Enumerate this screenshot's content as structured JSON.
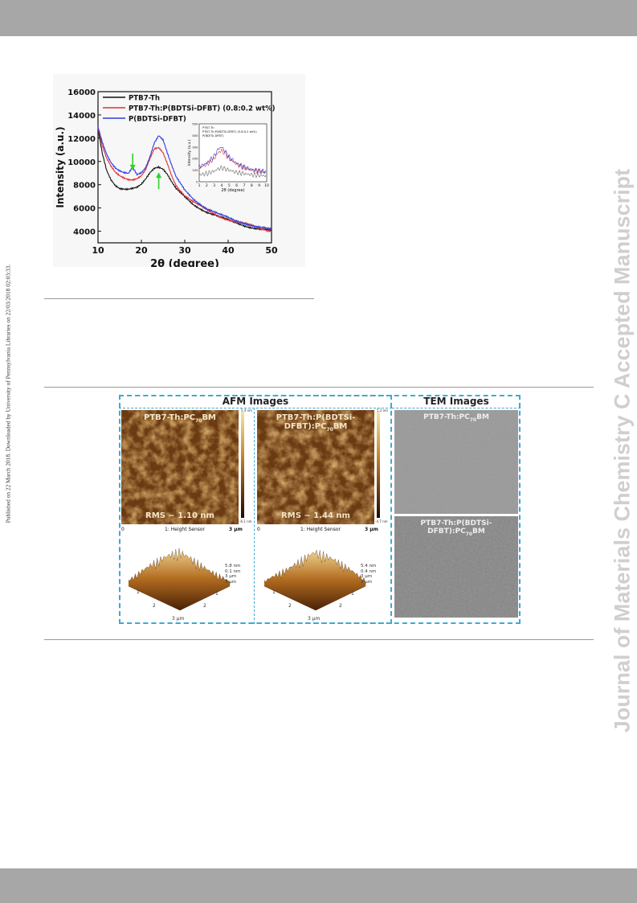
{
  "page": {
    "side_stamp": "Published on 22 March 2018. Downloaded by University of Pennsylvania Libraries on 22/03/2018 02:03:33.",
    "watermark": "Journal of Materials Chemistry C Accepted Manuscript"
  },
  "colors": {
    "bar_gray": "#a7a7a7",
    "series_black": "#111111",
    "series_red": "#e23030",
    "series_blue": "#2f3be0",
    "arrow_green": "#31d12b",
    "dash_blue": "#3fa9d6"
  },
  "chart_data": {
    "type": "line",
    "xlabel": "2θ (degree)",
    "ylabel": "Intensity (a.u.)",
    "xlim": [
      10,
      50
    ],
    "ylim": [
      3000,
      16000
    ],
    "xticks": [
      10,
      20,
      30,
      40,
      50
    ],
    "yticks": [
      4000,
      6000,
      8000,
      10000,
      12000,
      14000,
      16000
    ],
    "legend_position": "top-right",
    "series": [
      {
        "name": "PTB7-Th",
        "color": "#111111",
        "points": [
          [
            10,
            12800
          ],
          [
            11,
            10700
          ],
          [
            12,
            9300
          ],
          [
            13,
            8500
          ],
          [
            14,
            8000
          ],
          [
            15,
            7700
          ],
          [
            16,
            7600
          ],
          [
            17,
            7550
          ],
          [
            18,
            7600
          ],
          [
            19,
            7700
          ],
          [
            20,
            8000
          ],
          [
            21,
            8500
          ],
          [
            22,
            9100
          ],
          [
            23,
            9500
          ],
          [
            24,
            9600
          ],
          [
            25,
            9400
          ],
          [
            26,
            8900
          ],
          [
            27,
            8200
          ],
          [
            28,
            7600
          ],
          [
            30,
            6900
          ],
          [
            32,
            6300
          ],
          [
            35,
            5700
          ],
          [
            38,
            5200
          ],
          [
            41,
            4800
          ],
          [
            44,
            4500
          ],
          [
            47,
            4200
          ],
          [
            50,
            4000
          ]
        ]
      },
      {
        "name": "PTB7-Th:P(BDTSi-DFBT) (0.8:0.2 wt%)",
        "color": "#e23030",
        "points": [
          [
            10,
            12900
          ],
          [
            11,
            11300
          ],
          [
            12,
            10200
          ],
          [
            13,
            9500
          ],
          [
            14,
            9000
          ],
          [
            15,
            8750
          ],
          [
            16,
            8600
          ],
          [
            17,
            8500
          ],
          [
            18,
            8500
          ],
          [
            19,
            8600
          ],
          [
            20,
            8800
          ],
          [
            21,
            9300
          ],
          [
            22,
            10200
          ],
          [
            23,
            11000
          ],
          [
            24,
            11100
          ],
          [
            25,
            10700
          ],
          [
            26,
            9800
          ],
          [
            27,
            8800
          ],
          [
            28,
            8000
          ],
          [
            30,
            7100
          ],
          [
            32,
            6500
          ],
          [
            35,
            5800
          ],
          [
            38,
            5300
          ],
          [
            41,
            4900
          ],
          [
            44,
            4600
          ],
          [
            47,
            4300
          ],
          [
            50,
            4050
          ]
        ]
      },
      {
        "name": "P(BDTSi-DFBT)",
        "color": "#2f3be0",
        "points": [
          [
            10,
            13000
          ],
          [
            11,
            11700
          ],
          [
            12,
            10700
          ],
          [
            13,
            10000
          ],
          [
            14,
            9500
          ],
          [
            15,
            9200
          ],
          [
            16,
            9000
          ],
          [
            17,
            8900
          ],
          [
            18,
            9400
          ],
          [
            19,
            8800
          ],
          [
            20,
            9000
          ],
          [
            21,
            9500
          ],
          [
            22,
            10500
          ],
          [
            23,
            11700
          ],
          [
            24,
            12300
          ],
          [
            25,
            11900
          ],
          [
            26,
            10700
          ],
          [
            27,
            9600
          ],
          [
            28,
            8600
          ],
          [
            30,
            7500
          ],
          [
            32,
            6800
          ],
          [
            35,
            6000
          ],
          [
            38,
            5400
          ],
          [
            41,
            5000
          ],
          [
            44,
            4700
          ],
          [
            47,
            4350
          ],
          [
            50,
            4100
          ]
        ]
      }
    ],
    "annotations": [
      {
        "type": "arrow-down",
        "x": 18,
        "y": 9300,
        "color": "#31d12b"
      },
      {
        "type": "arrow-up",
        "x": 24,
        "y": 9000,
        "color": "#31d12b"
      }
    ],
    "inset": {
      "type": "line",
      "xlabel": "2θ (degree)",
      "ylabel": "Intensity (a.u.)",
      "xlim": [
        1,
        10
      ],
      "ylim": [
        0,
        500
      ],
      "xticks": [
        1,
        2,
        3,
        4,
        5,
        6,
        7,
        8,
        9,
        10
      ],
      "yticks": [
        0,
        100,
        200,
        300,
        400,
        500
      ],
      "legend": [
        "PTB7-Th",
        "PTB7-Th:P(BDTSi-DFBT) (0.8:0.2 wt%)",
        "P(BDTSi-DFBT)"
      ],
      "series": [
        {
          "color": "#666666",
          "points": [
            [
              1,
              60
            ],
            [
              2,
              70
            ],
            [
              3,
              90
            ],
            [
              3.5,
              110
            ],
            [
              4,
              120
            ],
            [
              4.5,
              110
            ],
            [
              5,
              100
            ],
            [
              6,
              80
            ],
            [
              7,
              70
            ],
            [
              8,
              60
            ],
            [
              9,
              55
            ],
            [
              10,
              50
            ]
          ]
        },
        {
          "color": "#e23030",
          "points": [
            [
              1,
              120
            ],
            [
              2,
              150
            ],
            [
              3,
              200
            ],
            [
              3.5,
              250
            ],
            [
              4,
              270
            ],
            [
              4.5,
              240
            ],
            [
              5,
              200
            ],
            [
              6,
              150
            ],
            [
              7,
              120
            ],
            [
              8,
              100
            ],
            [
              9,
              90
            ],
            [
              10,
              80
            ]
          ]
        },
        {
          "color": "#2f3be0",
          "points": [
            [
              1,
              130
            ],
            [
              2,
              160
            ],
            [
              3,
              220
            ],
            [
              3.5,
              280
            ],
            [
              4,
              300
            ],
            [
              4.5,
              260
            ],
            [
              5,
              210
            ],
            [
              6,
              160
            ],
            [
              7,
              125
            ],
            [
              8,
              105
            ],
            [
              9,
              95
            ],
            [
              10,
              85
            ]
          ]
        }
      ]
    }
  },
  "figure2": {
    "afm_header": "AFM Images",
    "tem_header": "TEM Images",
    "afm": [
      {
        "label_pre": "PTB7-Th:PC",
        "label_sub": "70",
        "label_post": "BM",
        "rms": "RMS ~ 1.10 nm",
        "cbar_top": "5.4 nm",
        "cbar_bottom": "-6.1 nm",
        "scale_left": "0",
        "scale_mid": "1: Height Sensor",
        "scale_right": "3 μm",
        "surf_lines": "5.8 nm\n0.1 nm\n3 μm\n3 μm",
        "axis_labels": [
          "1",
          "2",
          "3 μm",
          "2",
          "1"
        ]
      },
      {
        "label_pre": "PTB7-Th:P(BDTSi-DFBT):PC",
        "label_sub": "70",
        "label_post": "BM",
        "rms": "RMS ~ 1.44 nm",
        "cbar_top": "5.2 nm",
        "cbar_bottom": "-4.7 nm",
        "scale_left": "0",
        "scale_mid": "1: Height Sensor",
        "scale_right": "3 μm",
        "surf_lines": "5.4 nm\n0.4 nm\n3 μm\n3 μm",
        "axis_labels": [
          "1",
          "2",
          "3 μm",
          "2",
          "1"
        ]
      }
    ],
    "tem": [
      {
        "label_pre": "PTB7-Th:PC",
        "label_sub": "70",
        "label_post": "BM"
      },
      {
        "label_pre": "PTB7-Th:P(BDTSi-DFBT):PC",
        "label_sub": "70",
        "label_post": "BM"
      }
    ]
  }
}
